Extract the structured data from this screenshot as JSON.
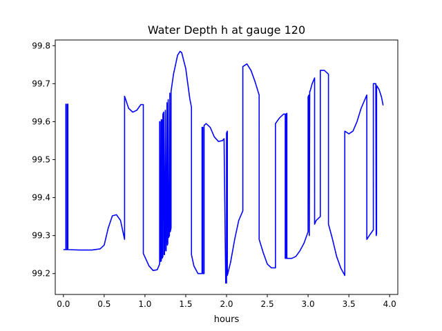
{
  "chart_data": {
    "type": "line",
    "title": "Water Depth h at gauge 120",
    "xlabel": "hours",
    "ylabel": "",
    "xlim": [
      -0.1,
      4.1
    ],
    "ylim": [
      99.145,
      99.815
    ],
    "grid": false,
    "legend": "none",
    "x_ticks": [
      {
        "value": 0.0,
        "label": "0.0"
      },
      {
        "value": 0.5,
        "label": "0.5"
      },
      {
        "value": 1.0,
        "label": "1.0"
      },
      {
        "value": 1.5,
        "label": "1.5"
      },
      {
        "value": 2.0,
        "label": "2.0"
      },
      {
        "value": 2.5,
        "label": "2.5"
      },
      {
        "value": 3.0,
        "label": "3.0"
      },
      {
        "value": 3.5,
        "label": "3.5"
      },
      {
        "value": 4.0,
        "label": "4.0"
      }
    ],
    "y_ticks": [
      {
        "value": 99.2,
        "label": "99.2"
      },
      {
        "value": 99.3,
        "label": "99.3"
      },
      {
        "value": 99.4,
        "label": "99.4"
      },
      {
        "value": 99.5,
        "label": "99.5"
      },
      {
        "value": 99.6,
        "label": "99.6"
      },
      {
        "value": 99.7,
        "label": "99.7"
      },
      {
        "value": 99.8,
        "label": "99.8"
      }
    ],
    "series": [
      {
        "color": "#0000ff",
        "points": [
          [
            0.0,
            99.263
          ],
          [
            0.03,
            99.263
          ],
          [
            0.03,
            99.646
          ],
          [
            0.035,
            99.646
          ],
          [
            0.035,
            99.263
          ],
          [
            0.05,
            99.263
          ],
          [
            0.05,
            99.646
          ],
          [
            0.055,
            99.646
          ],
          [
            0.055,
            99.263
          ],
          [
            0.2,
            99.262
          ],
          [
            0.35,
            99.262
          ],
          [
            0.45,
            99.265
          ],
          [
            0.5,
            99.275
          ],
          [
            0.55,
            99.32
          ],
          [
            0.6,
            99.352
          ],
          [
            0.65,
            99.355
          ],
          [
            0.7,
            99.34
          ],
          [
            0.75,
            99.29
          ],
          [
            0.75,
            99.667
          ],
          [
            0.8,
            99.635
          ],
          [
            0.85,
            99.625
          ],
          [
            0.9,
            99.63
          ],
          [
            0.95,
            99.645
          ],
          [
            0.98,
            99.645
          ],
          [
            0.98,
            99.253
          ],
          [
            1.05,
            99.22
          ],
          [
            1.1,
            99.208
          ],
          [
            1.15,
            99.21
          ],
          [
            1.18,
            99.225
          ],
          [
            1.18,
            99.6
          ],
          [
            1.185,
            99.6
          ],
          [
            1.19,
            99.232
          ],
          [
            1.2,
            99.233
          ],
          [
            1.2,
            99.605
          ],
          [
            1.21,
            99.605
          ],
          [
            1.21,
            99.24
          ],
          [
            1.22,
            99.245
          ],
          [
            1.22,
            99.62
          ],
          [
            1.23,
            99.625
          ],
          [
            1.235,
            99.25
          ],
          [
            1.24,
            99.25
          ],
          [
            1.25,
            99.63
          ],
          [
            1.255,
            99.26
          ],
          [
            1.26,
            99.26
          ],
          [
            1.27,
            99.65
          ],
          [
            1.275,
            99.275
          ],
          [
            1.28,
            99.28
          ],
          [
            1.285,
            99.658
          ],
          [
            1.29,
            99.295
          ],
          [
            1.3,
            99.3
          ],
          [
            1.305,
            99.675
          ],
          [
            1.31,
            99.31
          ],
          [
            1.32,
            99.32
          ],
          [
            1.32,
            99.68
          ],
          [
            1.35,
            99.725
          ],
          [
            1.4,
            99.775
          ],
          [
            1.43,
            99.785
          ],
          [
            1.45,
            99.782
          ],
          [
            1.5,
            99.74
          ],
          [
            1.55,
            99.66
          ],
          [
            1.57,
            99.638
          ],
          [
            1.57,
            99.25
          ],
          [
            1.6,
            99.22
          ],
          [
            1.65,
            99.2
          ],
          [
            1.7,
            99.2
          ],
          [
            1.7,
            99.585
          ],
          [
            1.71,
            99.585
          ],
          [
            1.71,
            99.2
          ],
          [
            1.725,
            99.2
          ],
          [
            1.725,
            99.59
          ],
          [
            1.75,
            99.595
          ],
          [
            1.8,
            99.585
          ],
          [
            1.85,
            99.56
          ],
          [
            1.9,
            99.548
          ],
          [
            1.95,
            99.55
          ],
          [
            1.97,
            99.555
          ],
          [
            1.97,
            99.55
          ],
          [
            1.99,
            99.175
          ],
          [
            2.0,
            99.175
          ],
          [
            2.0,
            99.57
          ],
          [
            2.01,
            99.575
          ],
          [
            2.01,
            99.195
          ],
          [
            2.05,
            99.23
          ],
          [
            2.1,
            99.29
          ],
          [
            2.15,
            99.34
          ],
          [
            2.2,
            99.365
          ],
          [
            2.2,
            99.745
          ],
          [
            2.25,
            99.752
          ],
          [
            2.3,
            99.735
          ],
          [
            2.35,
            99.705
          ],
          [
            2.4,
            99.67
          ],
          [
            2.4,
            99.29
          ],
          [
            2.45,
            99.255
          ],
          [
            2.5,
            99.225
          ],
          [
            2.55,
            99.215
          ],
          [
            2.6,
            99.215
          ],
          [
            2.6,
            99.595
          ],
          [
            2.65,
            99.61
          ],
          [
            2.7,
            99.62
          ],
          [
            2.72,
            99.62
          ],
          [
            2.72,
            99.24
          ],
          [
            2.73,
            99.24
          ],
          [
            2.73,
            99.62
          ],
          [
            2.74,
            99.622
          ],
          [
            2.74,
            99.24
          ],
          [
            2.8,
            99.24
          ],
          [
            2.85,
            99.245
          ],
          [
            2.9,
            99.26
          ],
          [
            2.95,
            99.28
          ],
          [
            3.0,
            99.31
          ],
          [
            3.0,
            99.665
          ],
          [
            3.01,
            99.67
          ],
          [
            3.015,
            99.3
          ],
          [
            3.02,
            99.68
          ],
          [
            3.025,
            99.68
          ],
          [
            3.05,
            99.7
          ],
          [
            3.08,
            99.715
          ],
          [
            3.08,
            99.33
          ],
          [
            3.1,
            99.34
          ],
          [
            3.15,
            99.35
          ],
          [
            3.15,
            99.735
          ],
          [
            3.2,
            99.735
          ],
          [
            3.25,
            99.725
          ],
          [
            3.25,
            99.33
          ],
          [
            3.3,
            99.29
          ],
          [
            3.35,
            99.245
          ],
          [
            3.4,
            99.215
          ],
          [
            3.45,
            99.195
          ],
          [
            3.45,
            99.575
          ],
          [
            3.5,
            99.568
          ],
          [
            3.55,
            99.575
          ],
          [
            3.6,
            99.6
          ],
          [
            3.65,
            99.635
          ],
          [
            3.7,
            99.66
          ],
          [
            3.72,
            99.67
          ],
          [
            3.72,
            99.29
          ],
          [
            3.75,
            99.3
          ],
          [
            3.8,
            99.315
          ],
          [
            3.8,
            99.7
          ],
          [
            3.83,
            99.7
          ],
          [
            3.835,
            99.3
          ],
          [
            3.84,
            99.305
          ],
          [
            3.84,
            99.695
          ],
          [
            3.87,
            99.685
          ],
          [
            3.9,
            99.665
          ],
          [
            3.92,
            99.643
          ]
        ]
      }
    ]
  }
}
